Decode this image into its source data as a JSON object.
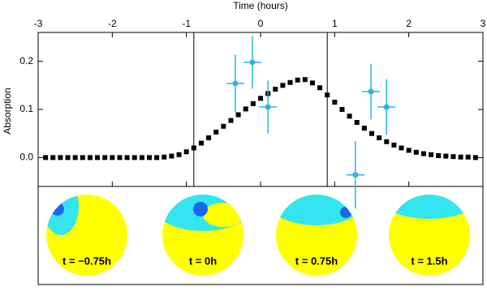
{
  "chart_data": {
    "type": "scatter",
    "x_label": "Time (hours)",
    "y_label": "Absorption",
    "xlim": [
      -3,
      3
    ],
    "xticks": [
      -3,
      -2,
      -1,
      0,
      1,
      2,
      3
    ],
    "ylim": [
      -0.06,
      0.26
    ],
    "yticks": [
      {
        "value": 0,
        "label": "0.0"
      },
      {
        "value": 0.1,
        "label": "0.1"
      },
      {
        "value": 0.2,
        "label": "0.2"
      }
    ],
    "vlines": [
      -0.9,
      0.9
    ],
    "series": [
      {
        "type": "model",
        "color": "#000000",
        "x": [
          -2.9,
          -2.8,
          -2.7,
          -2.6,
          -2.5,
          -2.4,
          -2.3,
          -2.2,
          -2.1,
          -2.0,
          -1.9,
          -1.8,
          -1.7,
          -1.6,
          -1.5,
          -1.4,
          -1.3,
          -1.2,
          -1.1,
          -1.0,
          -0.9,
          -0.8,
          -0.7,
          -0.6,
          -0.5,
          -0.4,
          -0.3,
          -0.2,
          -0.1,
          0,
          0.1,
          0.2,
          0.3,
          0.4,
          0.5,
          0.6,
          0.7,
          0.8,
          0.9,
          1.0,
          1.1,
          1.2,
          1.3,
          1.4,
          1.5,
          1.6,
          1.7,
          1.8,
          1.9,
          2.0,
          2.1,
          2.2,
          2.3,
          2.4,
          2.5,
          2.6,
          2.7,
          2.8,
          2.9
        ],
        "values": [
          0,
          0,
          0,
          0,
          0,
          0,
          0,
          0,
          0,
          0,
          0,
          0,
          0,
          0,
          0,
          0,
          0.001,
          0.003,
          0.006,
          0.012,
          0.02,
          0.03,
          0.041,
          0.053,
          0.065,
          0.077,
          0.089,
          0.101,
          0.112,
          0.123,
          0.133,
          0.142,
          0.15,
          0.156,
          0.161,
          0.162,
          0.155,
          0.145,
          0.13,
          0.115,
          0.1,
          0.086,
          0.073,
          0.061,
          0.05,
          0.041,
          0.033,
          0.026,
          0.02,
          0.015,
          0.011,
          0.008,
          0.006,
          0.004,
          0.003,
          0.002,
          0.001,
          0.001,
          0
        ]
      },
      {
        "type": "observed",
        "color": "#29b6e0",
        "x": [
          -0.34,
          -0.11,
          0.1,
          1.28,
          1.49,
          1.7
        ],
        "values": [
          0.154,
          0.198,
          0.105,
          -0.036,
          0.137,
          0.105
        ],
        "yerr": [
          0.06,
          0.055,
          0.055,
          0.07,
          0.058,
          0.058
        ],
        "xerr": [
          0.12,
          0.12,
          0.12,
          0.12,
          0.12,
          0.12
        ]
      }
    ]
  },
  "panels": [
    {
      "label": "t = −0.75h"
    },
    {
      "label": "t = 0h"
    },
    {
      "label": "t = 0.75h"
    },
    {
      "label": "t = 1.5h"
    }
  ]
}
